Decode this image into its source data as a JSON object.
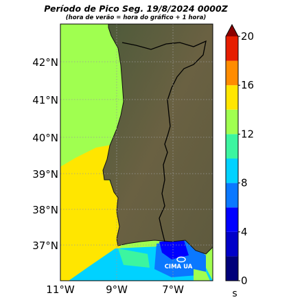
{
  "title": "Período de Pico Seg. 19/8/2024 0000Z",
  "subtitle": "(hora de verão = hora do gráfico + 1 hora)",
  "lat_labels": [
    "42°N",
    "41°N",
    "40°N",
    "39°N",
    "38°N",
    "37°N"
  ],
  "lon_labels": [
    "11°W",
    "9°W",
    "7°W"
  ],
  "colorbar": {
    "unit": "s",
    "tick_labels": [
      "0",
      "4",
      "8",
      "12",
      "16",
      "20"
    ],
    "range": [
      0,
      20
    ],
    "bands": [
      {
        "from": 0,
        "to": 2,
        "color": "#00007a"
      },
      {
        "from": 2,
        "to": 4,
        "color": "#0000c8"
      },
      {
        "from": 4,
        "to": 6,
        "color": "#0000ff"
      },
      {
        "from": 6,
        "to": 8,
        "color": "#0a78ff"
      },
      {
        "from": 8,
        "to": 10,
        "color": "#00d2ff"
      },
      {
        "from": 10,
        "to": 12,
        "color": "#3cf5a0"
      },
      {
        "from": 12,
        "to": 14,
        "color": "#a0ff50"
      },
      {
        "from": 14,
        "to": 16,
        "color": "#ffe600"
      },
      {
        "from": 16,
        "to": 18,
        "color": "#ff8c00"
      },
      {
        "from": 18,
        "to": 20,
        "color": "#e61e00"
      },
      {
        "from": 20,
        "to": 22,
        "color": "#8c0000"
      }
    ]
  },
  "logo": "CIMA UA",
  "colors": {
    "land": "#5b5a3e",
    "border": "#000000",
    "gridline": "#9a9a9a"
  }
}
